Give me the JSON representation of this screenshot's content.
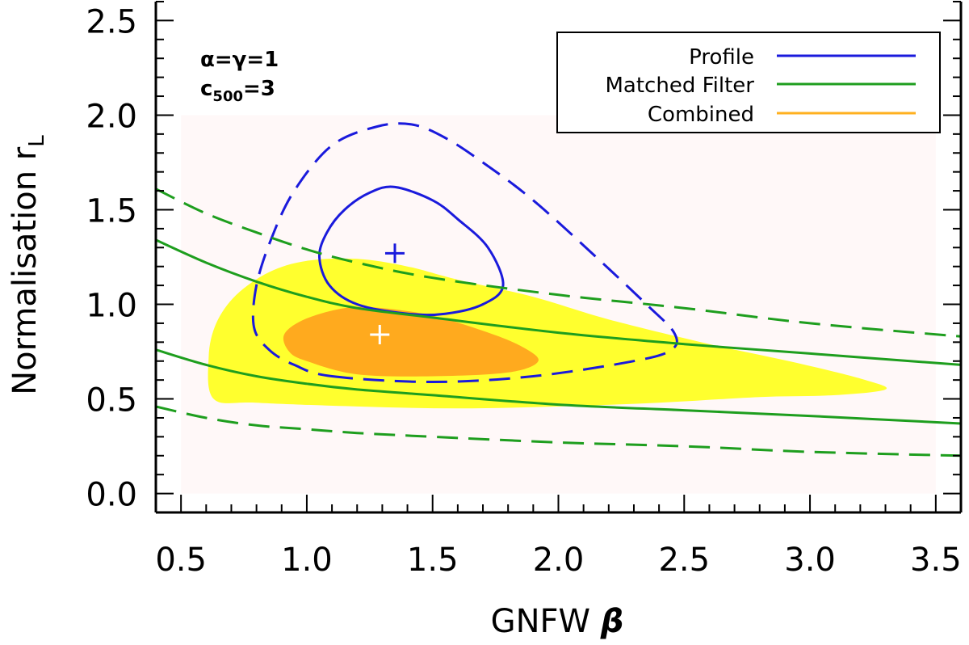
{
  "chart_data": {
    "type": "contour",
    "xlabel": "GNFW β",
    "xlabel_parts": {
      "main": "GNFW ",
      "symbol": "β"
    },
    "ylabel": "Normalisation r_L",
    "ylabel_parts": {
      "main": "Normalisation r",
      "sub": "L"
    },
    "xlim": [
      0.4,
      3.6
    ],
    "ylim": [
      -0.1,
      2.6
    ],
    "xticks": [
      0.5,
      1.0,
      1.5,
      2.0,
      2.5,
      3.0,
      3.5
    ],
    "yticks": [
      0.0,
      0.5,
      1.0,
      1.5,
      2.0,
      2.5
    ],
    "xtick_labels": [
      "0.5",
      "1.0",
      "1.5",
      "2.0",
      "2.5",
      "3.0",
      "3.5"
    ],
    "ytick_labels": [
      "0.0",
      "0.5",
      "1.0",
      "1.5",
      "2.0",
      "2.5"
    ],
    "prior_region": {
      "x": [
        0.5,
        3.5
      ],
      "y": [
        0.0,
        2.0
      ],
      "color": "#fff8f8"
    },
    "annotations": {
      "line1": "α=γ=1",
      "line2_main": "c",
      "line2_sub": "500",
      "line2_tail": "=3"
    },
    "legend": {
      "position": "top-right",
      "entries": [
        {
          "label": "Profile",
          "color": "#1a1adc"
        },
        {
          "label": "Matched Filter",
          "color": "#1e9e1e"
        },
        {
          "label": "Combined",
          "color": "#ffb01f"
        }
      ]
    },
    "series": [
      {
        "name": "Combined 95%",
        "kind": "filled",
        "color": "#ffff2e",
        "points": [
          [
            0.63,
            0.5
          ],
          [
            0.8,
            0.48
          ],
          [
            1.2,
            0.46
          ],
          [
            1.6,
            0.45
          ],
          [
            2.0,
            0.46
          ],
          [
            2.4,
            0.48
          ],
          [
            2.8,
            0.51
          ],
          [
            3.1,
            0.52
          ],
          [
            3.3,
            0.55
          ],
          [
            3.22,
            0.6
          ],
          [
            2.95,
            0.69
          ],
          [
            2.6,
            0.79
          ],
          [
            2.2,
            0.92
          ],
          [
            1.9,
            1.04
          ],
          [
            1.6,
            1.13
          ],
          [
            1.4,
            1.2
          ],
          [
            1.2,
            1.24
          ],
          [
            1.0,
            1.23
          ],
          [
            0.85,
            1.17
          ],
          [
            0.72,
            1.05
          ],
          [
            0.64,
            0.9
          ],
          [
            0.61,
            0.72
          ]
        ]
      },
      {
        "name": "Combined 68%",
        "kind": "filled",
        "color": "#ffaa1e",
        "points": [
          [
            1.0,
            0.7
          ],
          [
            1.2,
            0.63
          ],
          [
            1.5,
            0.62
          ],
          [
            1.8,
            0.64
          ],
          [
            1.92,
            0.7
          ],
          [
            1.85,
            0.78
          ],
          [
            1.7,
            0.86
          ],
          [
            1.5,
            0.94
          ],
          [
            1.3,
            0.98
          ],
          [
            1.15,
            0.98
          ],
          [
            0.99,
            0.92
          ],
          [
            0.91,
            0.84
          ],
          [
            0.93,
            0.75
          ]
        ]
      },
      {
        "name": "Profile 68%",
        "kind": "line",
        "style": "solid",
        "color": "#1a1adc",
        "points": [
          [
            1.4,
            0.95
          ],
          [
            1.55,
            0.95
          ],
          [
            1.7,
            1.0
          ],
          [
            1.78,
            1.1
          ],
          [
            1.72,
            1.3
          ],
          [
            1.6,
            1.45
          ],
          [
            1.5,
            1.55
          ],
          [
            1.35,
            1.62
          ],
          [
            1.25,
            1.59
          ],
          [
            1.15,
            1.5
          ],
          [
            1.08,
            1.38
          ],
          [
            1.05,
            1.25
          ],
          [
            1.09,
            1.1
          ],
          [
            1.2,
            1.0
          ],
          [
            1.4,
            0.95
          ]
        ]
      },
      {
        "name": "Profile 95%",
        "kind": "line",
        "style": "dashed",
        "color": "#1a1adc",
        "points": [
          [
            1.1,
            0.62
          ],
          [
            1.5,
            0.59
          ],
          [
            1.9,
            0.62
          ],
          [
            2.3,
            0.7
          ],
          [
            2.45,
            0.76
          ],
          [
            2.46,
            0.85
          ],
          [
            2.35,
            1.0
          ],
          [
            2.15,
            1.25
          ],
          [
            1.9,
            1.55
          ],
          [
            1.7,
            1.75
          ],
          [
            1.55,
            1.88
          ],
          [
            1.42,
            1.95
          ],
          [
            1.28,
            1.94
          ],
          [
            1.1,
            1.84
          ],
          [
            0.95,
            1.6
          ],
          [
            0.86,
            1.35
          ],
          [
            0.8,
            1.1
          ],
          [
            0.79,
            0.88
          ],
          [
            0.85,
            0.76
          ],
          [
            0.95,
            0.68
          ],
          [
            1.1,
            0.62
          ]
        ]
      },
      {
        "name": "Matched Filter upper 68%",
        "kind": "line",
        "style": "solid",
        "color": "#1e9e1e",
        "points": [
          [
            0.4,
            1.34
          ],
          [
            0.6,
            1.22
          ],
          [
            0.8,
            1.12
          ],
          [
            1.0,
            1.04
          ],
          [
            1.2,
            0.98
          ],
          [
            1.5,
            0.93
          ],
          [
            2.0,
            0.85
          ],
          [
            2.5,
            0.79
          ],
          [
            3.0,
            0.74
          ],
          [
            3.6,
            0.68
          ]
        ]
      },
      {
        "name": "Matched Filter lower 68%",
        "kind": "line",
        "style": "solid",
        "color": "#1e9e1e",
        "points": [
          [
            0.4,
            0.76
          ],
          [
            0.6,
            0.68
          ],
          [
            0.8,
            0.62
          ],
          [
            1.0,
            0.58
          ],
          [
            1.2,
            0.55
          ],
          [
            1.5,
            0.52
          ],
          [
            2.0,
            0.47
          ],
          [
            2.5,
            0.44
          ],
          [
            3.0,
            0.41
          ],
          [
            3.6,
            0.37
          ]
        ]
      },
      {
        "name": "Matched Filter upper 95%",
        "kind": "line",
        "style": "dashed",
        "color": "#1e9e1e",
        "points": [
          [
            0.4,
            1.61
          ],
          [
            0.6,
            1.48
          ],
          [
            0.8,
            1.38
          ],
          [
            1.0,
            1.29
          ],
          [
            1.2,
            1.22
          ],
          [
            1.5,
            1.14
          ],
          [
            2.0,
            1.05
          ],
          [
            2.5,
            0.98
          ],
          [
            3.0,
            0.9
          ],
          [
            3.6,
            0.83
          ]
        ]
      },
      {
        "name": "Matched Filter lower 95%",
        "kind": "line",
        "style": "dashed",
        "color": "#1e9e1e",
        "points": [
          [
            0.4,
            0.46
          ],
          [
            0.6,
            0.4
          ],
          [
            0.8,
            0.36
          ],
          [
            1.0,
            0.34
          ],
          [
            1.2,
            0.32
          ],
          [
            1.5,
            0.3
          ],
          [
            2.0,
            0.27
          ],
          [
            2.5,
            0.25
          ],
          [
            3.0,
            0.22
          ],
          [
            3.6,
            0.2
          ]
        ]
      }
    ],
    "best_fit_markers": [
      {
        "name": "Profile best fit",
        "x": 1.35,
        "y": 1.27,
        "color": "#1a1adc"
      },
      {
        "name": "Combined best fit",
        "x": 1.29,
        "y": 0.84,
        "color": "#ffffff"
      }
    ]
  }
}
